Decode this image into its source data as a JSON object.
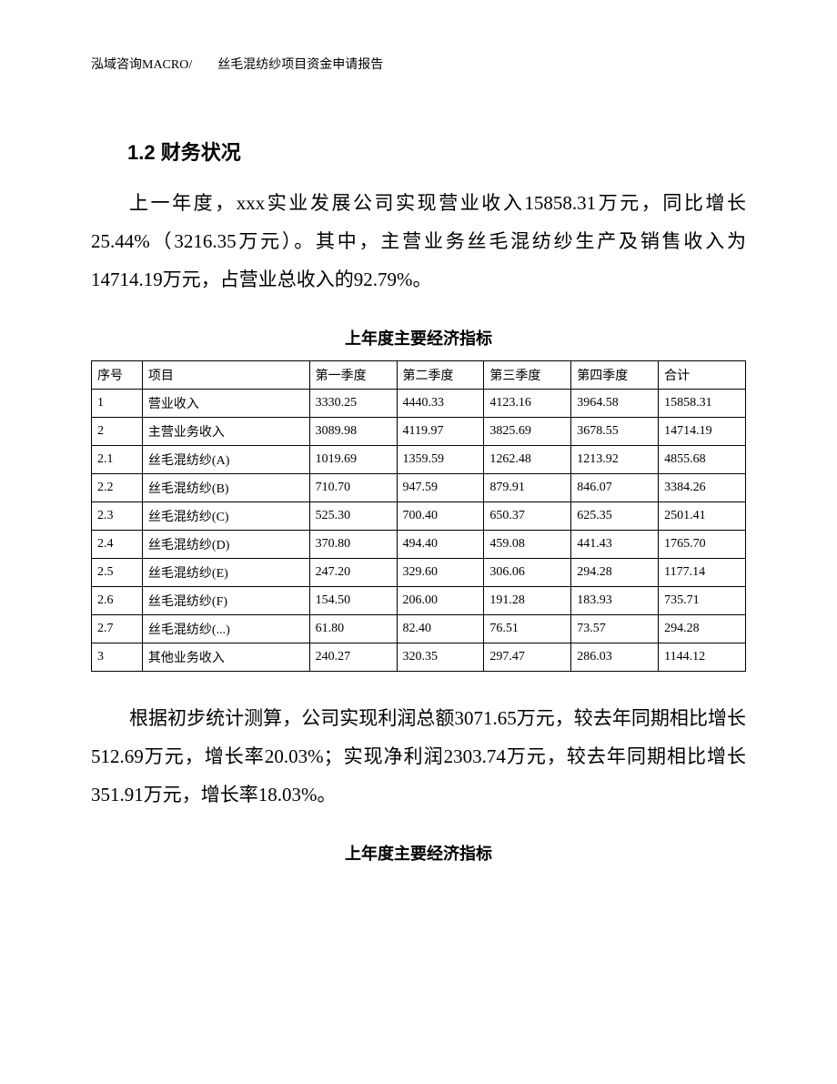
{
  "header": {
    "text": "泓域咨询MACRO/　　丝毛混纺纱项目资金申请报告"
  },
  "section": {
    "heading": "1.2 财务状况",
    "para1": "上一年度，xxx实业发展公司实现营业收入15858.31万元，同比增长25.44%（3216.35万元）。其中，主营业务丝毛混纺纱生产及销售收入为14714.19万元，占营业总收入的92.79%。",
    "para2": "根据初步统计测算，公司实现利润总额3071.65万元，较去年同期相比增长512.69万元，增长率20.03%；实现净利润2303.74万元，较去年同期相比增长351.91万元，增长率18.03%。"
  },
  "table1": {
    "title": "上年度主要经济指标",
    "columns": [
      "序号",
      "项目",
      "第一季度",
      "第二季度",
      "第三季度",
      "第四季度",
      "合计"
    ],
    "rows": [
      [
        "1",
        "营业收入",
        "3330.25",
        "4440.33",
        "4123.16",
        "3964.58",
        "15858.31"
      ],
      [
        "2",
        "主营业务收入",
        "3089.98",
        "4119.97",
        "3825.69",
        "3678.55",
        "14714.19"
      ],
      [
        "2.1",
        "丝毛混纺纱(A)",
        "1019.69",
        "1359.59",
        "1262.48",
        "1213.92",
        "4855.68"
      ],
      [
        "2.2",
        "丝毛混纺纱(B)",
        "710.70",
        "947.59",
        "879.91",
        "846.07",
        "3384.26"
      ],
      [
        "2.3",
        "丝毛混纺纱(C)",
        "525.30",
        "700.40",
        "650.37",
        "625.35",
        "2501.41"
      ],
      [
        "2.4",
        "丝毛混纺纱(D)",
        "370.80",
        "494.40",
        "459.08",
        "441.43",
        "1765.70"
      ],
      [
        "2.5",
        "丝毛混纺纱(E)",
        "247.20",
        "329.60",
        "306.06",
        "294.28",
        "1177.14"
      ],
      [
        "2.6",
        "丝毛混纺纱(F)",
        "154.50",
        "206.00",
        "191.28",
        "183.93",
        "735.71"
      ],
      [
        "2.7",
        "丝毛混纺纱(...)",
        "61.80",
        "82.40",
        "76.51",
        "73.57",
        "294.28"
      ],
      [
        "3",
        "其他业务收入",
        "240.27",
        "320.35",
        "297.47",
        "286.03",
        "1144.12"
      ]
    ]
  },
  "table2": {
    "title": "上年度主要经济指标"
  }
}
